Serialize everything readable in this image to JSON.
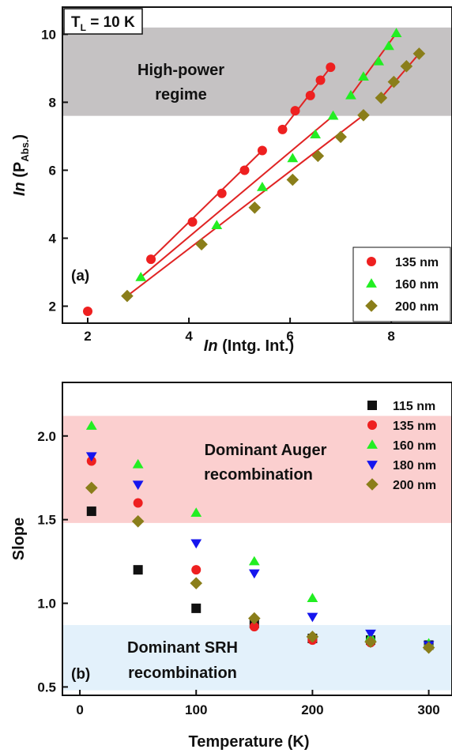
{
  "chart_data": [
    {
      "type": "scatter",
      "panel_label": "(a)",
      "condition_label": {
        "prefix": "T",
        "sub": "L",
        "suffix": " = 10 K"
      },
      "xlabel": {
        "italic": "In",
        "rest": " (Intg. Int.)"
      },
      "ylabel": {
        "italic": "In",
        "rest": " (P",
        "sub": "Abs.",
        "close": ")"
      },
      "xlim": [
        1.5,
        9.2
      ],
      "ylim": [
        1.5,
        10.8
      ],
      "xticks": [
        "2",
        "4",
        "6",
        "8"
      ],
      "yticks": [
        "2",
        "4",
        "6",
        "8",
        "10"
      ],
      "shaded_region": {
        "y": [
          7.6,
          10.2
        ],
        "color": "#c5c2c3",
        "label_lines": [
          "High-power",
          "regime"
        ]
      },
      "fit_color": "#e02424",
      "legend_placement": "bottom-right",
      "series": [
        {
          "name": "135 nm",
          "marker": "circle",
          "color": "#ee2020",
          "points": [
            [
              2.0,
              1.85
            ],
            [
              3.25,
              3.38
            ],
            [
              4.07,
              4.48
            ],
            [
              4.65,
              5.32
            ],
            [
              5.1,
              6.0
            ],
            [
              5.45,
              6.58
            ],
            [
              5.85,
              7.2
            ],
            [
              6.1,
              7.75
            ],
            [
              6.4,
              8.2
            ],
            [
              6.6,
              8.65
            ],
            [
              6.8,
              9.03
            ]
          ],
          "fits": [
            [
              [
                3.25,
                3.38
              ],
              [
                5.45,
                6.58
              ]
            ],
            [
              [
                5.85,
                7.2
              ],
              [
                6.8,
                9.03
              ]
            ]
          ]
        },
        {
          "name": "160 nm",
          "marker": "triangle-up",
          "color": "#22ee22",
          "points": [
            [
              3.05,
              2.85
            ],
            [
              4.55,
              4.38
            ],
            [
              5.45,
              5.5
            ],
            [
              6.05,
              6.35
            ],
            [
              6.5,
              7.05
            ],
            [
              6.85,
              7.6
            ],
            [
              7.2,
              8.2
            ],
            [
              7.45,
              8.75
            ],
            [
              7.75,
              9.2
            ],
            [
              7.95,
              9.65
            ],
            [
              8.1,
              10.03
            ]
          ],
          "fits": [
            [
              [
                3.05,
                2.85
              ],
              [
                6.85,
                7.6
              ]
            ],
            [
              [
                7.2,
                8.2
              ],
              [
                8.1,
                10.03
              ]
            ]
          ]
        },
        {
          "name": "200 nm",
          "marker": "diamond",
          "color": "#8a7e1a",
          "points": [
            [
              2.78,
              2.3
            ],
            [
              4.25,
              3.82
            ],
            [
              5.3,
              4.9
            ],
            [
              6.05,
              5.72
            ],
            [
              6.55,
              6.42
            ],
            [
              7.0,
              6.98
            ],
            [
              7.45,
              7.62
            ],
            [
              7.8,
              8.13
            ],
            [
              8.05,
              8.6
            ],
            [
              8.3,
              9.06
            ],
            [
              8.55,
              9.43
            ]
          ],
          "fits": [
            [
              [
                2.78,
                2.3
              ],
              [
                7.45,
                7.62
              ]
            ],
            [
              [
                7.8,
                8.13
              ],
              [
                8.55,
                9.43
              ]
            ]
          ]
        }
      ]
    },
    {
      "type": "scatter",
      "panel_label": "(b)",
      "xlabel": "Temperature (K)",
      "ylabel": "Slope",
      "xlim": [
        -15,
        320
      ],
      "ylim": [
        0.45,
        2.32
      ],
      "xticks": [
        "0",
        "100",
        "200",
        "300"
      ],
      "yticks": [
        "0.5",
        "1.0",
        "1.5",
        "2.0"
      ],
      "legend_placement": "top-right",
      "shaded_regions": [
        {
          "y": [
            1.48,
            2.12
          ],
          "color": "#fbcfcf",
          "label_lines": [
            "Dominant Auger",
            "recombination"
          ]
        },
        {
          "y": [
            0.48,
            0.87
          ],
          "color": "#e3f1fb",
          "label_lines": [
            "Dominant SRH",
            "recombination"
          ]
        }
      ],
      "series": [
        {
          "name": "115 nm",
          "marker": "square",
          "color": "#111111",
          "points": [
            [
              10,
              1.55
            ],
            [
              50,
              1.2
            ],
            [
              100,
              0.97
            ],
            [
              150,
              0.88
            ],
            [
              200,
              0.79
            ],
            [
              250,
              0.78
            ],
            [
              300,
              0.75
            ]
          ]
        },
        {
          "name": "135 nm",
          "marker": "circle",
          "color": "#ee2020",
          "points": [
            [
              10,
              1.85
            ],
            [
              50,
              1.6
            ],
            [
              100,
              1.2
            ],
            [
              150,
              0.86
            ],
            [
              200,
              0.78
            ],
            [
              250,
              0.765
            ],
            [
              300,
              0.74
            ]
          ]
        },
        {
          "name": "160 nm",
          "marker": "triangle-up",
          "color": "#22ee22",
          "points": [
            [
              10,
              2.06
            ],
            [
              50,
              1.83
            ],
            [
              100,
              1.54
            ],
            [
              150,
              1.25
            ],
            [
              200,
              1.03
            ],
            [
              250,
              0.8
            ],
            [
              300,
              0.76
            ]
          ]
        },
        {
          "name": "180 nm",
          "marker": "triangle-down",
          "color": "#1515ee",
          "points": [
            [
              10,
              1.88
            ],
            [
              50,
              1.71
            ],
            [
              100,
              1.36
            ],
            [
              150,
              1.18
            ],
            [
              200,
              0.92
            ],
            [
              250,
              0.82
            ],
            [
              300,
              0.75
            ]
          ]
        },
        {
          "name": "200 nm",
          "marker": "diamond",
          "color": "#8a7e1a",
          "points": [
            [
              10,
              1.69
            ],
            [
              50,
              1.49
            ],
            [
              100,
              1.12
            ],
            [
              150,
              0.91
            ],
            [
              200,
              0.8
            ],
            [
              250,
              0.77
            ],
            [
              300,
              0.735
            ]
          ]
        }
      ]
    }
  ]
}
